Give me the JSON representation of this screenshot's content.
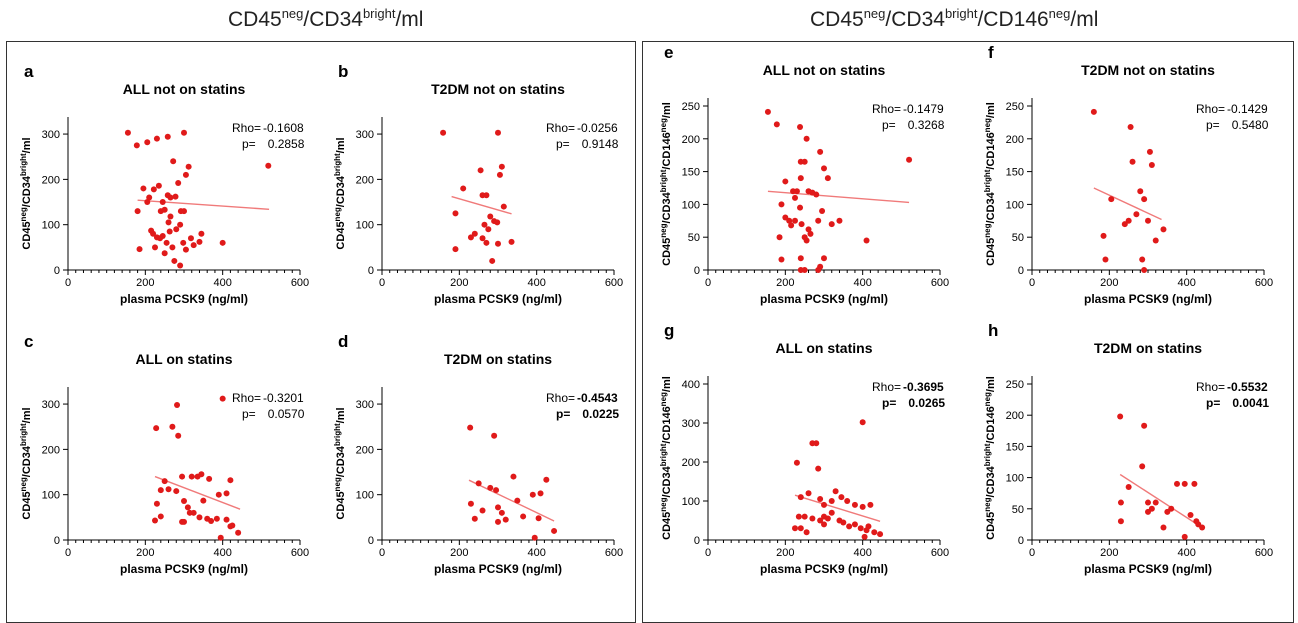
{
  "header": {
    "left_title": [
      {
        "t": "CD45",
        "sup": false
      },
      {
        "t": "neg",
        "sup": true
      },
      {
        "t": "/CD34",
        "sup": false
      },
      {
        "t": "bright",
        "sup": true
      },
      {
        "t": "/ml",
        "sup": false
      }
    ],
    "right_title": [
      {
        "t": "CD45",
        "sup": false
      },
      {
        "t": "neg",
        "sup": true
      },
      {
        "t": "/CD34",
        "sup": false
      },
      {
        "t": "bright",
        "sup": true
      },
      {
        "t": "/CD146",
        "sup": false
      },
      {
        "t": "neg",
        "sup": true
      },
      {
        "t": "/ml",
        "sup": false
      }
    ]
  },
  "colors": {
    "point": "#e01a1a",
    "line": "#f07a7a",
    "axis": "#000000"
  },
  "axis_text": {
    "xlabel": "plasma PCSK9 (ng/ml)",
    "ylabel_left": [
      {
        "t": "CD45",
        "sup": false
      },
      {
        "t": "neg",
        "sup": true
      },
      {
        "t": "/CD34",
        "sup": false
      },
      {
        "t": "bright",
        "sup": true
      },
      {
        "t": "/ml",
        "sup": false
      }
    ],
    "ylabel_right": [
      {
        "t": "CD45",
        "sup": false
      },
      {
        "t": "neg",
        "sup": true
      },
      {
        "t": "/CD34",
        "sup": false
      },
      {
        "t": "bright",
        "sup": true
      },
      {
        "t": "/CD146",
        "sup": false
      },
      {
        "t": "neg",
        "sup": true
      },
      {
        "t": "/ml",
        "sup": false
      }
    ],
    "rho_prefix": "Rho=",
    "p_prefix": "p="
  },
  "chart_data": [
    {
      "type": "scatter",
      "letter": "a",
      "title": "ALL not on statins",
      "xlim": [
        0,
        600
      ],
      "ylim": [
        0,
        320
      ],
      "xticks": [
        0,
        200,
        400,
        600
      ],
      "yticks": [
        0,
        100,
        200,
        300
      ],
      "rho": "-0.1608",
      "p": "0.2858",
      "bold_stats": false,
      "fit": [
        [
          180,
          154
        ],
        [
          520,
          134
        ]
      ],
      "points": [
        [
          155,
          303
        ],
        [
          178,
          275
        ],
        [
          205,
          282
        ],
        [
          230,
          290
        ],
        [
          258,
          294
        ],
        [
          300,
          303
        ],
        [
          518,
          230
        ],
        [
          180,
          130
        ],
        [
          195,
          180
        ],
        [
          210,
          160
        ],
        [
          222,
          178
        ],
        [
          235,
          186
        ],
        [
          240,
          130
        ],
        [
          245,
          150
        ],
        [
          250,
          133
        ],
        [
          258,
          165
        ],
        [
          265,
          160
        ],
        [
          272,
          240
        ],
        [
          278,
          162
        ],
        [
          285,
          192
        ],
        [
          292,
          130
        ],
        [
          300,
          130
        ],
        [
          305,
          210
        ],
        [
          312,
          228
        ],
        [
          185,
          46
        ],
        [
          205,
          150
        ],
        [
          215,
          87
        ],
        [
          220,
          80
        ],
        [
          225,
          50
        ],
        [
          230,
          72
        ],
        [
          238,
          70
        ],
        [
          245,
          75
        ],
        [
          250,
          37
        ],
        [
          255,
          60
        ],
        [
          260,
          105
        ],
        [
          265,
          118
        ],
        [
          270,
          50
        ],
        [
          275,
          20
        ],
        [
          280,
          90
        ],
        [
          290,
          100
        ],
        [
          298,
          60
        ],
        [
          305,
          45
        ],
        [
          318,
          70
        ],
        [
          325,
          55
        ],
        [
          340,
          62
        ],
        [
          345,
          80
        ],
        [
          400,
          60
        ],
        [
          290,
          10
        ],
        [
          263,
          85
        ]
      ]
    },
    {
      "type": "scatter",
      "letter": "b",
      "title": "T2DM not on statins",
      "xlim": [
        0,
        600
      ],
      "ylim": [
        0,
        320
      ],
      "xticks": [
        0,
        200,
        400,
        600
      ],
      "yticks": [
        0,
        100,
        200,
        300
      ],
      "rho": "-0.0256",
      "p": "0.9148",
      "bold_stats": false,
      "fit": [
        [
          180,
          162
        ],
        [
          335,
          124
        ]
      ],
      "points": [
        [
          158,
          303
        ],
        [
          300,
          303
        ],
        [
          310,
          228
        ],
        [
          305,
          210
        ],
        [
          260,
          165
        ],
        [
          270,
          165
        ],
        [
          255,
          220
        ],
        [
          210,
          180
        ],
        [
          190,
          125
        ],
        [
          280,
          118
        ],
        [
          290,
          108
        ],
        [
          275,
          90
        ],
        [
          240,
          80
        ],
        [
          230,
          72
        ],
        [
          260,
          70
        ],
        [
          270,
          60
        ],
        [
          190,
          46
        ],
        [
          300,
          58
        ],
        [
          335,
          62
        ],
        [
          285,
          20
        ],
        [
          298,
          105
        ],
        [
          315,
          140
        ],
        [
          265,
          100
        ]
      ]
    },
    {
      "type": "scatter",
      "letter": "c",
      "title": "ALL on statins",
      "xlim": [
        0,
        600
      ],
      "ylim": [
        0,
        320
      ],
      "xticks": [
        0,
        200,
        400,
        600
      ],
      "yticks": [
        0,
        100,
        200,
        300
      ],
      "rho": "-0.3201",
      "p": "0.0570",
      "bold_stats": false,
      "fit": [
        [
          225,
          140
        ],
        [
          445,
          68
        ]
      ],
      "points": [
        [
          400,
          312
        ],
        [
          282,
          298
        ],
        [
          270,
          250
        ],
        [
          228,
          247
        ],
        [
          285,
          230
        ],
        [
          240,
          110
        ],
        [
          260,
          112
        ],
        [
          250,
          130
        ],
        [
          280,
          108
        ],
        [
          295,
          140
        ],
        [
          320,
          140
        ],
        [
          335,
          140
        ],
        [
          345,
          145
        ],
        [
          365,
          135
        ],
        [
          390,
          100
        ],
        [
          410,
          103
        ],
        [
          420,
          132
        ],
        [
          300,
          86
        ],
        [
          310,
          72
        ],
        [
          325,
          60
        ],
        [
          340,
          50
        ],
        [
          350,
          87
        ],
        [
          360,
          47
        ],
        [
          370,
          42
        ],
        [
          385,
          47
        ],
        [
          230,
          80
        ],
        [
          240,
          52
        ],
        [
          225,
          43
        ],
        [
          295,
          40
        ],
        [
          300,
          40
        ],
        [
          410,
          45
        ],
        [
          420,
          30
        ],
        [
          425,
          32
        ],
        [
          440,
          16
        ],
        [
          395,
          5
        ],
        [
          315,
          60
        ]
      ]
    },
    {
      "type": "scatter",
      "letter": "d",
      "title": "T2DM on statins",
      "xlim": [
        0,
        600
      ],
      "ylim": [
        0,
        320
      ],
      "xticks": [
        0,
        200,
        400,
        600
      ],
      "yticks": [
        0,
        100,
        200,
        300
      ],
      "rho": "-0.4543",
      "p": "0.0225",
      "bold_stats": true,
      "fit": [
        [
          225,
          132
        ],
        [
          445,
          42
        ]
      ],
      "points": [
        [
          228,
          248
        ],
        [
          290,
          230
        ],
        [
          250,
          125
        ],
        [
          280,
          115
        ],
        [
          295,
          110
        ],
        [
          340,
          140
        ],
        [
          390,
          100
        ],
        [
          425,
          133
        ],
        [
          230,
          80
        ],
        [
          260,
          65
        ],
        [
          300,
          72
        ],
        [
          310,
          60
        ],
        [
          320,
          45
        ],
        [
          365,
          52
        ],
        [
          240,
          47
        ],
        [
          300,
          40
        ],
        [
          410,
          103
        ],
        [
          405,
          48
        ],
        [
          445,
          20
        ],
        [
          395,
          5
        ],
        [
          350,
          87
        ]
      ]
    },
    {
      "type": "scatter",
      "letter": "e",
      "title": "ALL not on statins",
      "xlim": [
        0,
        600
      ],
      "ylim": [
        0,
        250
      ],
      "xticks": [
        0,
        200,
        400,
        600
      ],
      "yticks": [
        0,
        50,
        100,
        150,
        200,
        250
      ],
      "rho": "-0.1479",
      "p": "0.3268",
      "bold_stats": false,
      "fit": [
        [
          155,
          120
        ],
        [
          520,
          103
        ]
      ],
      "points": [
        [
          155,
          241
        ],
        [
          178,
          222
        ],
        [
          238,
          218
        ],
        [
          255,
          200
        ],
        [
          290,
          180
        ],
        [
          240,
          165
        ],
        [
          250,
          165
        ],
        [
          520,
          168
        ],
        [
          200,
          135
        ],
        [
          220,
          120
        ],
        [
          225,
          110
        ],
        [
          230,
          120
        ],
        [
          240,
          140
        ],
        [
          260,
          120
        ],
        [
          270,
          118
        ],
        [
          280,
          115
        ],
        [
          300,
          155
        ],
        [
          310,
          140
        ],
        [
          190,
          100
        ],
        [
          200,
          80
        ],
        [
          210,
          75
        ],
        [
          215,
          68
        ],
        [
          225,
          75
        ],
        [
          238,
          95
        ],
        [
          242,
          70
        ],
        [
          250,
          50
        ],
        [
          255,
          45
        ],
        [
          260,
          62
        ],
        [
          265,
          55
        ],
        [
          285,
          75
        ],
        [
          295,
          90
        ],
        [
          320,
          70
        ],
        [
          340,
          75
        ],
        [
          185,
          50
        ],
        [
          190,
          16
        ],
        [
          240,
          18
        ],
        [
          300,
          18
        ],
        [
          410,
          45
        ],
        [
          240,
          0
        ],
        [
          250,
          0
        ],
        [
          290,
          5
        ],
        [
          285,
          0
        ]
      ]
    },
    {
      "type": "scatter",
      "letter": "f",
      "title": "T2DM not on statins",
      "xlim": [
        0,
        600
      ],
      "ylim": [
        0,
        250
      ],
      "xticks": [
        0,
        200,
        400,
        600
      ],
      "yticks": [
        0,
        50,
        100,
        150,
        200,
        250
      ],
      "rho": "-0.1429",
      "p": "0.5480",
      "bold_stats": false,
      "fit": [
        [
          160,
          125
        ],
        [
          335,
          77
        ]
      ],
      "points": [
        [
          160,
          241
        ],
        [
          255,
          218
        ],
        [
          305,
          180
        ],
        [
          260,
          165
        ],
        [
          310,
          160
        ],
        [
          280,
          120
        ],
        [
          290,
          108
        ],
        [
          205,
          108
        ],
        [
          270,
          85
        ],
        [
          250,
          75
        ],
        [
          240,
          70
        ],
        [
          300,
          75
        ],
        [
          185,
          52
        ],
        [
          320,
          45
        ],
        [
          340,
          62
        ],
        [
          190,
          16
        ],
        [
          285,
          16
        ],
        [
          290,
          0
        ]
      ]
    },
    {
      "type": "scatter",
      "letter": "g",
      "title": "ALL on statins",
      "xlim": [
        0,
        600
      ],
      "ylim": [
        0,
        400
      ],
      "xticks": [
        0,
        200,
        400,
        600
      ],
      "yticks": [
        0,
        100,
        200,
        300,
        400
      ],
      "rho": "-0.3695",
      "p": "0.0265",
      "bold_stats": true,
      "fit": [
        [
          225,
          115
        ],
        [
          445,
          48
        ]
      ],
      "points": [
        [
          400,
          302
        ],
        [
          270,
          248
        ],
        [
          280,
          248
        ],
        [
          230,
          198
        ],
        [
          285,
          183
        ],
        [
          240,
          110
        ],
        [
          260,
          120
        ],
        [
          290,
          105
        ],
        [
          300,
          90
        ],
        [
          320,
          100
        ],
        [
          330,
          125
        ],
        [
          345,
          110
        ],
        [
          360,
          100
        ],
        [
          380,
          90
        ],
        [
          400,
          85
        ],
        [
          420,
          90
        ],
        [
          250,
          60
        ],
        [
          270,
          55
        ],
        [
          290,
          50
        ],
        [
          300,
          40
        ],
        [
          310,
          55
        ],
        [
          320,
          70
        ],
        [
          340,
          50
        ],
        [
          350,
          45
        ],
        [
          365,
          35
        ],
        [
          380,
          40
        ],
        [
          395,
          30
        ],
        [
          410,
          25
        ],
        [
          430,
          20
        ],
        [
          445,
          15
        ],
        [
          225,
          30
        ],
        [
          240,
          30
        ],
        [
          255,
          20
        ],
        [
          235,
          60
        ],
        [
          405,
          8
        ],
        [
          415,
          35
        ],
        [
          300,
          60
        ]
      ]
    },
    {
      "type": "scatter",
      "letter": "h",
      "title": "T2DM on statins",
      "xlim": [
        0,
        600
      ],
      "ylim": [
        0,
        250
      ],
      "xticks": [
        0,
        200,
        400,
        600
      ],
      "yticks": [
        0,
        50,
        100,
        150,
        200,
        250
      ],
      "rho": "-0.5532",
      "p": "0.0041",
      "bold_stats": true,
      "fit": [
        [
          228,
          105
        ],
        [
          445,
          18
        ]
      ],
      "points": [
        [
          228,
          198
        ],
        [
          290,
          183
        ],
        [
          285,
          118
        ],
        [
          250,
          85
        ],
        [
          300,
          60
        ],
        [
          230,
          60
        ],
        [
          310,
          50
        ],
        [
          320,
          60
        ],
        [
          350,
          45
        ],
        [
          360,
          50
        ],
        [
          375,
          90
        ],
        [
          395,
          90
        ],
        [
          420,
          90
        ],
        [
          410,
          40
        ],
        [
          425,
          30
        ],
        [
          430,
          25
        ],
        [
          440,
          20
        ],
        [
          230,
          30
        ],
        [
          300,
          45
        ],
        [
          340,
          20
        ],
        [
          395,
          5
        ]
      ]
    }
  ]
}
